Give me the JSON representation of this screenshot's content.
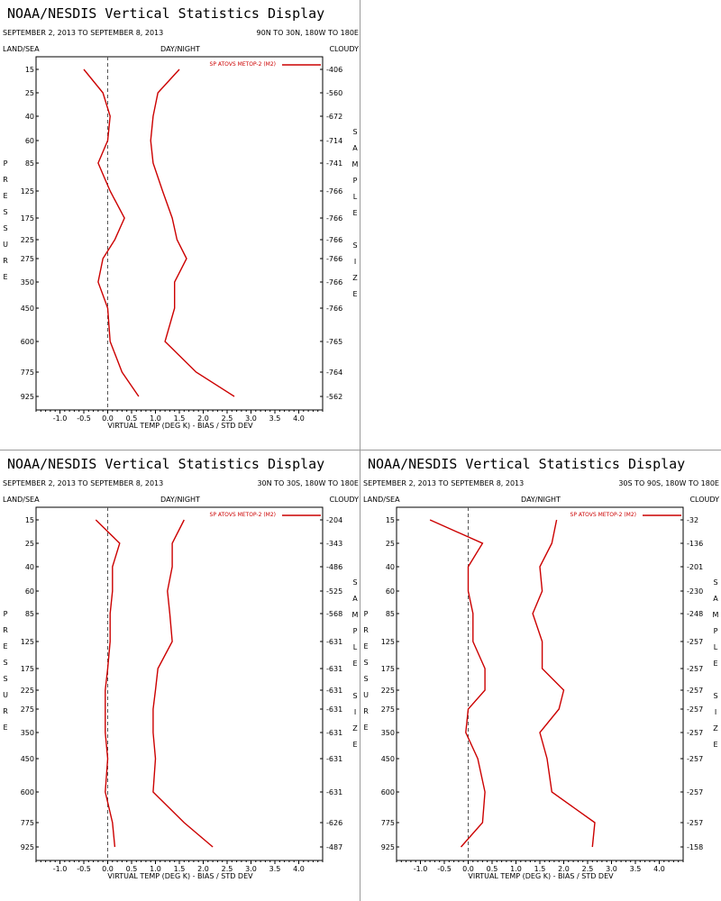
{
  "page": {
    "colors": {
      "line": "#cc0000",
      "axis": "#000000",
      "zero_line": "#555555",
      "separator": "#9a9a9a"
    }
  },
  "labels": {
    "land_sea": "LAND/SEA",
    "day_night": "DAY/NIGHT",
    "cloudy": "CLOUDY",
    "pressure_vertical": [
      "P",
      "R",
      "E",
      "S",
      "S",
      "U",
      "R",
      "E"
    ],
    "sample_size_vertical": [
      "S",
      "A",
      "M",
      "P",
      "L",
      "E",
      "",
      "S",
      "I",
      "Z",
      "E"
    ]
  },
  "chart_data": [
    {
      "type": "line",
      "title": "NOAA/NESDIS Vertical Statistics Display",
      "date_range": "SEPTEMBER 2, 2013 TO SEPTEMBER 8, 2013",
      "region": "90N TO 30N, 180W TO 180E",
      "xlabel": "VIRTUAL TEMP (DEG K) - BIAS / STD DEV",
      "xlim": [
        -1.5,
        4.5
      ],
      "xticks": [
        "-1.0",
        "-0.5",
        "0.0",
        "0.5",
        "1.0",
        "1.5",
        "2.0",
        "2.5",
        "3.0",
        "3.5",
        "4.0"
      ],
      "pressure_levels": [
        "15",
        "25",
        "40",
        "60",
        "85",
        "125",
        "175",
        "225",
        "275",
        "350",
        "450",
        "600",
        "775",
        "925"
      ],
      "sample_size": [
        "406",
        "560",
        "672",
        "714",
        "741",
        "766",
        "766",
        "766",
        "766",
        "766",
        "766",
        "765",
        "764",
        "562"
      ],
      "series": [
        {
          "name": "SP ATOVS METOP-2 (M2)",
          "line": "bias",
          "values": [
            -0.5,
            -0.1,
            0.05,
            0.0,
            -0.2,
            0.05,
            0.35,
            0.15,
            -0.1,
            -0.2,
            0.0,
            0.05,
            0.3,
            0.65
          ]
        },
        {
          "line": "std_dev",
          "values": [
            1.5,
            1.05,
            0.95,
            0.9,
            0.95,
            1.15,
            1.35,
            1.45,
            1.65,
            1.4,
            1.4,
            1.2,
            1.85,
            2.65
          ]
        }
      ]
    },
    {
      "type": "line",
      "title": "NOAA/NESDIS Vertical Statistics Display",
      "date_range": "SEPTEMBER 2, 2013 TO SEPTEMBER 8, 2013",
      "region": "30N TO 30S, 180W TO 180E",
      "xlabel": "VIRTUAL TEMP (DEG K) - BIAS / STD DEV",
      "xlim": [
        -1.5,
        4.5
      ],
      "xticks": [
        "-1.0",
        "-0.5",
        "0.0",
        "0.5",
        "1.0",
        "1.5",
        "2.0",
        "2.5",
        "3.0",
        "3.5",
        "4.0"
      ],
      "pressure_levels": [
        "15",
        "25",
        "40",
        "60",
        "85",
        "125",
        "175",
        "225",
        "275",
        "350",
        "450",
        "600",
        "775",
        "925"
      ],
      "sample_size": [
        "204",
        "343",
        "486",
        "525",
        "568",
        "631",
        "631",
        "631",
        "631",
        "631",
        "631",
        "631",
        "626",
        "487"
      ],
      "series": [
        {
          "name": "SP ATOVS METOP-2 (M2)",
          "line": "bias",
          "values": [
            -0.25,
            0.25,
            0.1,
            0.1,
            0.05,
            0.05,
            0.0,
            -0.05,
            -0.05,
            -0.05,
            0.0,
            -0.05,
            0.1,
            0.15
          ]
        },
        {
          "line": "std_dev",
          "values": [
            1.6,
            1.35,
            1.35,
            1.25,
            1.3,
            1.35,
            1.05,
            1.0,
            0.95,
            0.95,
            1.0,
            0.95,
            1.6,
            2.2
          ]
        }
      ]
    },
    {
      "type": "line",
      "title": "NOAA/NESDIS Vertical Statistics Display",
      "date_range": "SEPTEMBER 2, 2013 TO SEPTEMBER 8, 2013",
      "region": "30S TO 90S, 180W TO 180E",
      "xlabel": "VIRTUAL TEMP (DEG K) - BIAS / STD DEV",
      "xlim": [
        -1.5,
        4.5
      ],
      "xticks": [
        "-1.0",
        "-0.5",
        "0.0",
        "0.5",
        "1.0",
        "1.5",
        "2.0",
        "2.5",
        "3.0",
        "3.5",
        "4.0"
      ],
      "pressure_levels": [
        "15",
        "25",
        "40",
        "60",
        "85",
        "125",
        "175",
        "225",
        "275",
        "350",
        "450",
        "600",
        "775",
        "925"
      ],
      "sample_size": [
        "32",
        "136",
        "201",
        "230",
        "248",
        "257",
        "257",
        "257",
        "257",
        "257",
        "257",
        "257",
        "257",
        "158"
      ],
      "series": [
        {
          "name": "SP ATOVS METOP-2 (M2)",
          "line": "bias",
          "values": [
            -0.8,
            0.3,
            0.0,
            0.0,
            0.1,
            0.1,
            0.35,
            0.35,
            0.0,
            -0.05,
            0.2,
            0.35,
            0.3,
            -0.15
          ]
        },
        {
          "line": "std_dev",
          "values": [
            1.85,
            1.75,
            1.5,
            1.55,
            1.35,
            1.55,
            1.55,
            2.0,
            1.9,
            1.5,
            1.65,
            1.75,
            2.65,
            2.6
          ]
        }
      ]
    }
  ]
}
